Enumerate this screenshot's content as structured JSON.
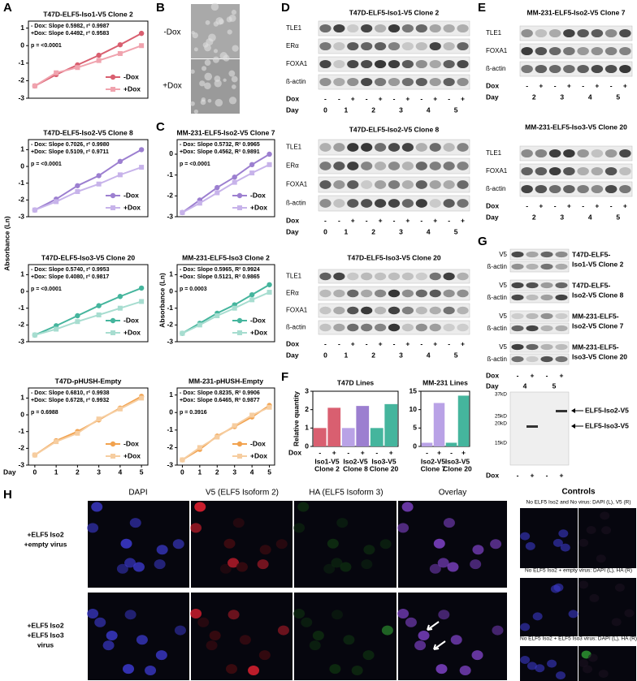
{
  "panel_labels": [
    "A",
    "B",
    "C",
    "D",
    "E",
    "F",
    "G",
    "H"
  ],
  "y_axis_labels": [
    "Absorbance (Ln)",
    "Absorbance (Ln)"
  ],
  "chart_data": [
    {
      "type": "line",
      "title": "T47D-ELF5-Iso1-V5 Clone 2",
      "annotations": [
        "- Dox: Slope 0.5982, r² 0.9987",
        "+Dox: Slope 0.4492, r² 0.9583",
        "p = <0.0001"
      ],
      "x": [
        0,
        1,
        2,
        3,
        4,
        5
      ],
      "xlim": [
        -0.3,
        5.3
      ],
      "ylim": [
        -3,
        1.4
      ],
      "yticks": [
        -3,
        -2,
        -1,
        0,
        1
      ],
      "series": [
        {
          "name": "-Dox",
          "color": "#d95f70",
          "marker": "circle",
          "values": [
            -2.3,
            -1.65,
            -1.1,
            -0.55,
            0.05,
            0.7
          ]
        },
        {
          "name": "+Dox",
          "color": "#f0a3ae",
          "marker": "square",
          "values": [
            -2.3,
            -1.55,
            -1.25,
            -0.85,
            -0.45,
            0.0
          ]
        }
      ]
    },
    {
      "type": "line",
      "title": "T47D-ELF5-Iso2-V5 Clone 8",
      "annotations": [
        "- Dox: Slope 0.7026, r² 0.9980",
        "+Dox: Slope 0.5109, r² 0.9711",
        "p = <0.0001"
      ],
      "x": [
        0,
        1,
        2,
        3,
        4,
        5
      ],
      "xlim": [
        -0.3,
        5.3
      ],
      "ylim": [
        -3,
        1.6
      ],
      "yticks": [
        -3,
        -2,
        -1,
        0,
        1
      ],
      "series": [
        {
          "name": "-Dox",
          "color": "#9c7fd0",
          "marker": "circle",
          "values": [
            -2.6,
            -1.95,
            -1.15,
            -0.55,
            0.3,
            1.0
          ]
        },
        {
          "name": "+Dox",
          "color": "#c7b3ea",
          "marker": "square",
          "values": [
            -2.6,
            -2.1,
            -1.5,
            -1.05,
            -0.5,
            -0.05
          ]
        }
      ]
    },
    {
      "type": "line",
      "title": "T47D-ELF5-Iso3-V5 Clone 20",
      "annotations": [
        "- Dox: Slope 0.5740, r² 0.9953",
        "+Dox: Slope 0.4080, r² 0.9817",
        "p = <0.0001"
      ],
      "x": [
        0,
        1,
        2,
        3,
        4,
        5
      ],
      "xlim": [
        -0.3,
        5.3
      ],
      "ylim": [
        -3,
        1.6
      ],
      "yticks": [
        -3,
        -2,
        -1,
        0,
        1
      ],
      "series": [
        {
          "name": "-Dox",
          "color": "#45b59d",
          "marker": "circle",
          "values": [
            -2.6,
            -2.05,
            -1.45,
            -0.85,
            -0.3,
            0.2
          ]
        },
        {
          "name": "+Dox",
          "color": "#a7ddd0",
          "marker": "square",
          "values": [
            -2.6,
            -2.25,
            -1.8,
            -1.4,
            -1.0,
            -0.6
          ]
        }
      ]
    },
    {
      "type": "line",
      "title": "T47D-pHUSH-Empty",
      "annotations": [
        "- Dox: Slope 0.6810, r² 0.9938",
        "+Dox: Slope 0.6728, r² 0.9932",
        "p = 0.6988"
      ],
      "x": [
        0,
        1,
        2,
        3,
        4,
        5
      ],
      "xlim": [
        -0.3,
        5.3
      ],
      "ylim": [
        -3,
        1.6
      ],
      "yticks": [
        -3,
        -2,
        -1,
        0,
        1
      ],
      "xticks": [
        0,
        1,
        2,
        3,
        4,
        5
      ],
      "xlabel": "Day",
      "series": [
        {
          "name": "-Dox",
          "color": "#f2a24e",
          "marker": "circle",
          "values": [
            -2.4,
            -1.55,
            -1.0,
            -0.3,
            0.4,
            1.1
          ]
        },
        {
          "name": "+Dox",
          "color": "#f6cda0",
          "marker": "square",
          "values": [
            -2.4,
            -1.6,
            -1.1,
            -0.25,
            0.35,
            1.0
          ]
        }
      ]
    },
    {
      "type": "line",
      "title": "MM-231-ELF5-Iso2-V5 Clone 7",
      "annotations": [
        "- Dox: Slope 0.5732, R² 0.9965",
        "+Dox: Slope 0.4562, R² 0.9891",
        "p = <0.0001"
      ],
      "x": [
        0,
        1,
        2,
        3,
        4,
        5
      ],
      "xlim": [
        -0.3,
        5.3
      ],
      "ylim": [
        -3,
        0.7
      ],
      "yticks": [
        -3,
        -2,
        -1,
        0
      ],
      "series": [
        {
          "name": "-Dox",
          "color": "#9c7fd0",
          "marker": "circle",
          "values": [
            -2.8,
            -2.2,
            -1.6,
            -1.1,
            -0.5,
            0.0
          ]
        },
        {
          "name": "+Dox",
          "color": "#c7b3ea",
          "marker": "square",
          "values": [
            -2.8,
            -2.35,
            -1.85,
            -1.35,
            -0.9,
            -0.5
          ]
        }
      ]
    },
    {
      "type": "line",
      "title": "MM-231-ELF5-Iso3 Clone 2",
      "annotations": [
        "- Dox: Slope 0.5965, R² 0.9924",
        "+Dox: Slope 0.5121, R² 0.9865",
        "p = 0.0003"
      ],
      "x": [
        0,
        1,
        2,
        3,
        4,
        5
      ],
      "xlim": [
        -0.3,
        5.3
      ],
      "ylim": [
        -3,
        1.6
      ],
      "yticks": [
        -3,
        -2,
        -1,
        0,
        1
      ],
      "series": [
        {
          "name": "-Dox",
          "color": "#45b59d",
          "marker": "circle",
          "values": [
            -2.5,
            -1.9,
            -1.3,
            -0.8,
            -0.2,
            0.4
          ]
        },
        {
          "name": "+Dox",
          "color": "#a7ddd0",
          "marker": "square",
          "values": [
            -2.5,
            -2.0,
            -1.45,
            -1.0,
            -0.5,
            -0.05
          ]
        }
      ]
    },
    {
      "type": "line",
      "title": "MM-231-pHUSH-Empty",
      "annotations": [
        "- Dox: Slope 0.8235, R² 0.9906",
        "+Dox: Slope 0.6465, R² 0.9877",
        "p = 0.3916"
      ],
      "x": [
        0,
        1,
        2,
        3,
        4,
        5
      ],
      "xlim": [
        -0.3,
        5.3
      ],
      "ylim": [
        -3,
        1.4
      ],
      "yticks": [
        -3,
        -2,
        -1,
        0,
        1
      ],
      "xticks": [
        0,
        1,
        2,
        3,
        4,
        5
      ],
      "series": [
        {
          "name": "-Dox",
          "color": "#f2a24e",
          "marker": "circle",
          "values": [
            -2.7,
            -2.1,
            -1.35,
            -0.8,
            -0.25,
            0.4
          ]
        },
        {
          "name": "+Dox",
          "color": "#f6cda0",
          "marker": "square",
          "values": [
            -2.7,
            -2.0,
            -1.4,
            -0.75,
            -0.15,
            0.3
          ]
        }
      ]
    },
    {
      "type": "bar",
      "title": "T47D Lines",
      "ylabel": "Relative quantity",
      "xlabel": "Dox",
      "categories": [
        "-",
        "+",
        "-",
        "+",
        "-",
        "+"
      ],
      "values": [
        1,
        2.1,
        1,
        2.2,
        1,
        2.3
      ],
      "colors": [
        "#d95f70",
        "#d95f70",
        "#b9a2e6",
        "#9c7fd0",
        "#45b59d",
        "#45b59d"
      ],
      "ylim": [
        0,
        3
      ],
      "yticks": [
        0,
        1,
        2,
        3
      ],
      "groups": [
        {
          "label": [
            "Iso1-V5",
            "Clone 2"
          ],
          "color": "#d95f70"
        },
        {
          "label": [
            "Iso2-V5",
            "Clone 8"
          ],
          "color": "#9c7fd0"
        },
        {
          "label": [
            "Iso3-V5",
            "Clone 20"
          ],
          "color": "#45b59d"
        }
      ]
    },
    {
      "type": "bar",
      "title": "MM-231 Lines",
      "categories": [
        "-",
        "+",
        "-",
        "+"
      ],
      "values": [
        1,
        11.8,
        1,
        13.8
      ],
      "colors": [
        "#b9a2e6",
        "#b9a2e6",
        "#45b59d",
        "#45b59d"
      ],
      "ylim": [
        0,
        15
      ],
      "yticks": [
        0,
        5,
        10,
        15
      ],
      "groups": [
        {
          "label": [
            "Iso2-V5",
            "Clone 7"
          ],
          "color": "#9c7fd0"
        },
        {
          "label": [
            "Iso3-V5",
            "Clone 20"
          ],
          "color": "#45b59d"
        }
      ]
    }
  ],
  "panel_b": {
    "labels": [
      "-Dox",
      "+Dox"
    ]
  },
  "blots_d": [
    {
      "title": "T47D-ELF5-Iso1-V5 Clone 2",
      "color": "#d95f70",
      "rows": [
        "TLE1",
        "ERα",
        "FOXA1",
        "ß-actin"
      ],
      "dox_label": "Dox",
      "dox": [
        "-",
        "-",
        "+",
        "-",
        "+",
        "-",
        "+",
        "-",
        "+",
        "-",
        "+"
      ],
      "day_label": "Day",
      "days": [
        0,
        1,
        2,
        3,
        4,
        5
      ]
    },
    {
      "title": "T47D-ELF5-Iso2-V5 Clone 8",
      "color": "#9c7fd0",
      "rows": [
        "TLE1",
        "ERα",
        "FOXA1",
        "ß-actin"
      ],
      "dox_label": "Dox",
      "dox": [
        "-",
        "-",
        "+",
        "-",
        "+",
        "-",
        "+",
        "-",
        "+",
        "-",
        "+"
      ],
      "day_label": "Day",
      "days": [
        0,
        1,
        2,
        3,
        4,
        5
      ]
    },
    {
      "title": "T47D-ELF5-Iso3-V5 Clone 20",
      "color": "#45b59d",
      "rows": [
        "TLE1",
        "ERα",
        "FOXA1",
        "ß-actin"
      ],
      "dox_label": "Dox",
      "dox": [
        "-",
        "-",
        "+",
        "-",
        "+",
        "-",
        "+",
        "-",
        "+",
        "-",
        "+"
      ],
      "day_label": "Day",
      "days": [
        0,
        1,
        2,
        3,
        4,
        5
      ]
    }
  ],
  "blots_e": [
    {
      "title": "MM-231-ELF5-Iso2-V5 Clone 7",
      "color": "#9c7fd0",
      "rows": [
        "TLE1",
        "FOXA1",
        "ß-actin"
      ],
      "dox_label": "Dox",
      "dox": [
        "-",
        "+",
        "-",
        "+",
        "-",
        "+",
        "-",
        "+"
      ],
      "day_label": "Day",
      "days": [
        2,
        3,
        4,
        5
      ]
    },
    {
      "title": "MM-231-ELF5-Iso3-V5 Clone 20",
      "color": "#45b59d",
      "rows": [
        "TLE1",
        "FOXA1",
        "ß-actin"
      ],
      "dox_label": "Dox",
      "dox": [
        "-",
        "+",
        "-",
        "+",
        "-",
        "+",
        "-",
        "+"
      ],
      "day_label": "Day",
      "days": [
        2,
        3,
        4,
        5
      ]
    }
  ],
  "blots_g": {
    "blots": [
      {
        "rows": [
          "V5",
          "ß-actin"
        ],
        "label": [
          "T47D-ELF5-",
          "Iso1-V5 Clone 2"
        ],
        "color": "#d95f70"
      },
      {
        "rows": [
          "V5",
          "ß-actin"
        ],
        "label": [
          "T47D-ELF5-",
          "Iso2-V5 Clone 8"
        ],
        "color": "#9c7fd0"
      },
      {
        "rows": [
          "V5",
          "ß-actin"
        ],
        "label": [
          "MM-231-ELF5-",
          "Iso2-V5 Clone 7"
        ],
        "color": "#9c7fd0"
      },
      {
        "rows": [
          "V5",
          "ß-actin"
        ],
        "label": [
          "MM-231-ELF5-",
          "Iso3-V5 Clone 20"
        ],
        "color": "#45b59d"
      }
    ],
    "dox_label": "Dox",
    "dox": [
      "-",
      "+",
      "-",
      "+"
    ],
    "day_label": "Day",
    "days": [
      4,
      5
    ],
    "size_blot": {
      "markers": [
        "37kD",
        "25kD",
        "20kD",
        "15kD"
      ],
      "arrows": [
        "ELF5-Iso2-V5",
        "ELF5-Iso3-V5"
      ],
      "dox_label": "Dox",
      "dox": [
        "-",
        "+",
        "-",
        "+"
      ]
    }
  },
  "microscopy": {
    "columns": [
      "DAPI",
      "V5 (ELF5 Isoform 2)",
      "HA (ELF5 Isoform 3)",
      "Overlay"
    ],
    "rows": [
      [
        "+ELF5 Iso2",
        "+empty virus"
      ],
      [
        "+ELF5 Iso2",
        "+ELF5 Iso3",
        "virus"
      ]
    ],
    "controls_title": "Controls",
    "controls": [
      "No ELF5 Iso2 and No virus: DAPI (L), V5 (R)",
      "No ELF5 Iso2 + empty virus: DAPI (L), HA (R)",
      "No ELF5 Iso2 + ELF5 Iso3 virus: DAPI (L), HA (R)"
    ]
  }
}
